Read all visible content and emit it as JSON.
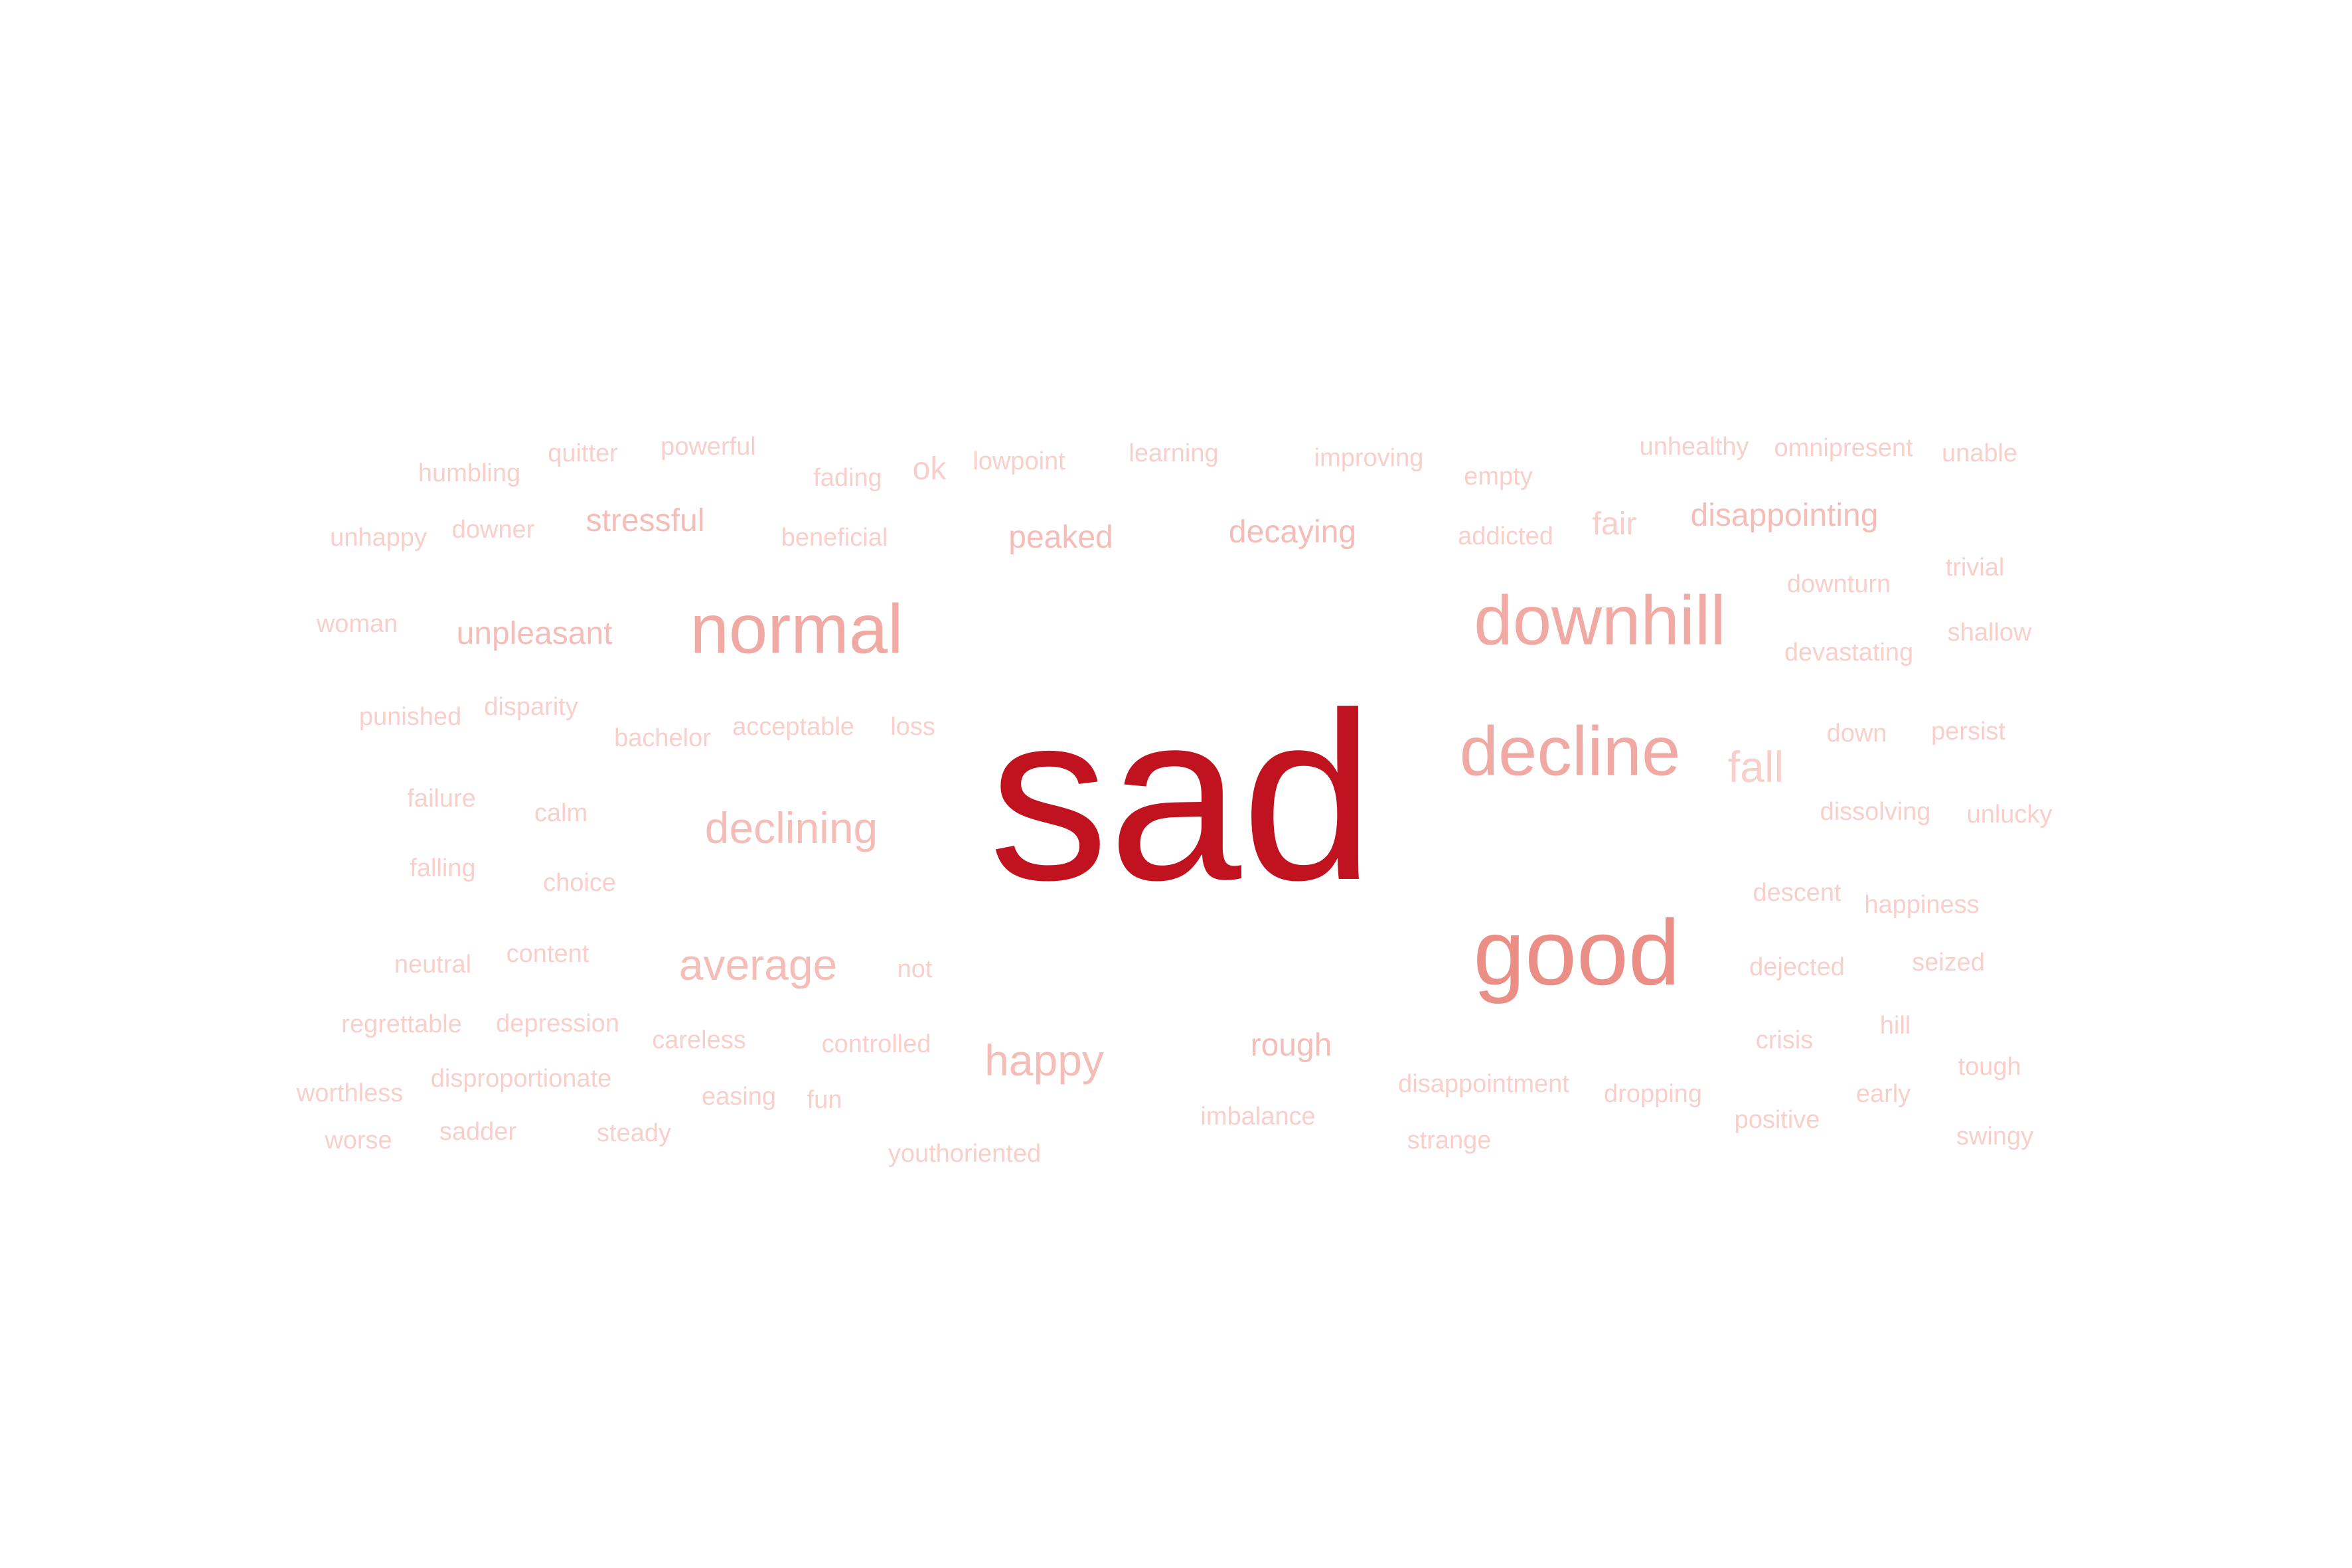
{
  "words": {
    "sad": "sad",
    "good": "good",
    "downhill": "downhill",
    "normal": "normal",
    "decline": "decline",
    "declining": "declining",
    "average": "average",
    "happy": "happy",
    "fall": "fall",
    "stressful": "stressful",
    "peaked": "peaked",
    "decaying": "decaying",
    "disappointing": "disappointing",
    "unpleasant": "unpleasant",
    "rough": "rough",
    "humbling": "humbling",
    "quitter": "quitter",
    "powerful": "powerful",
    "fading": "fading",
    "ok": "ok",
    "lowpoint": "lowpoint",
    "learning": "learning",
    "improving": "improving",
    "empty": "empty",
    "unhealthy": "unhealthy",
    "omnipresent": "omnipresent",
    "unable": "unable",
    "unhappy": "unhappy",
    "downer": "downer",
    "beneficial": "beneficial",
    "addicted": "addicted",
    "fair": "fair",
    "trivial": "trivial",
    "downturn": "downturn",
    "woman": "woman",
    "shallow": "shallow",
    "devastating": "devastating",
    "punished": "punished",
    "disparity": "disparity",
    "bachelor": "bachelor",
    "acceptable": "acceptable",
    "loss": "loss",
    "down": "down",
    "persist": "persist",
    "failure": "failure",
    "calm": "calm",
    "dissolving": "dissolving",
    "unlucky": "unlucky",
    "falling": "falling",
    "choice": "choice",
    "descent": "descent",
    "happiness": "happiness",
    "neutral": "neutral",
    "content": "content",
    "not": "not",
    "dejected": "dejected",
    "seized": "seized",
    "regrettable": "regrettable",
    "depression": "depression",
    "careless": "careless",
    "controlled": "controlled",
    "crisis": "crisis",
    "hill": "hill",
    "disproportionate": "disproportionate",
    "worthless": "worthless",
    "easing": "easing",
    "fun": "fun",
    "disappointment": "disappointment",
    "dropping": "dropping",
    "early": "early",
    "tough": "tough",
    "imbalance": "imbalance",
    "positive": "positive",
    "worse": "worse",
    "sadder": "sadder",
    "steady": "steady",
    "strange": "strange",
    "swingy": "swingy",
    "youthoriented": "youthoriented"
  },
  "colors": {
    "dominant": "#c0121f",
    "strong": "#ea8e86",
    "medium": "#f1aaa3",
    "light": "#f5bdb7",
    "faint": "#f8cfcb"
  }
}
